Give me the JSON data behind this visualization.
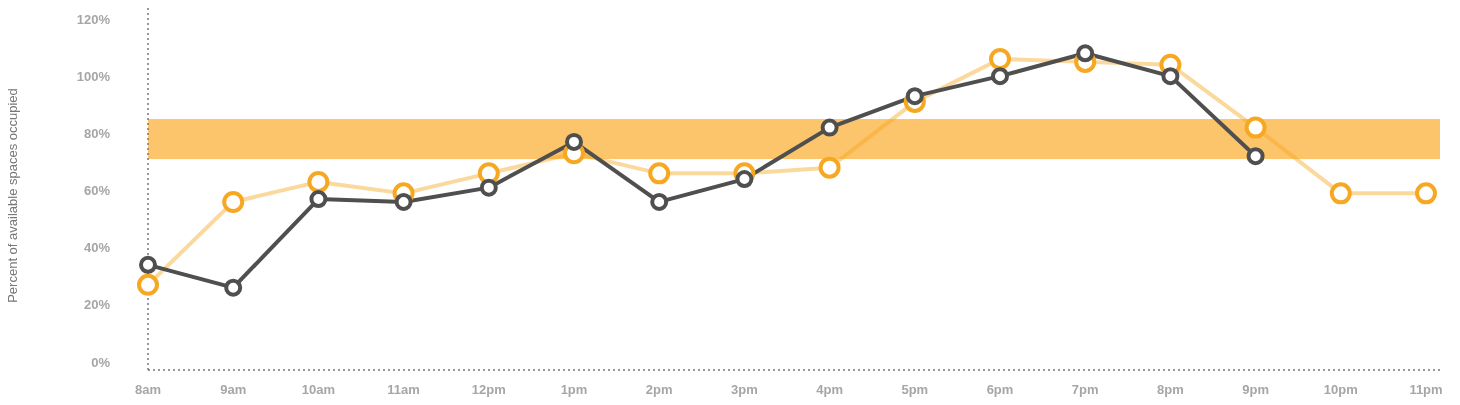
{
  "chart_data": {
    "type": "line",
    "ylabel": "Percent of available spaces occupied",
    "categories": [
      "8am",
      "9am",
      "10am",
      "11am",
      "12pm",
      "1pm",
      "2pm",
      "3pm",
      "4pm",
      "5pm",
      "6pm",
      "7pm",
      "8pm",
      "9pm",
      "10pm",
      "11pm"
    ],
    "series": [
      {
        "color": "#f7a823",
        "values": [
          27,
          56,
          63,
          59,
          66,
          73,
          66,
          66,
          68,
          91,
          106,
          105,
          104,
          82,
          59,
          59
        ]
      },
      {
        "color": "#4f4f4f",
        "values": [
          34,
          26,
          57,
          56,
          61,
          77,
          56,
          64,
          82,
          93,
          100,
          108,
          100,
          72,
          null,
          null
        ]
      }
    ],
    "ylim": [
      0,
      120
    ],
    "yticks": [
      {
        "value": 0,
        "label": "0%"
      },
      {
        "value": 20,
        "label": "20%"
      },
      {
        "value": 40,
        "label": "40%"
      },
      {
        "value": 60,
        "label": "60%"
      },
      {
        "value": 80,
        "label": "80%"
      },
      {
        "value": 100,
        "label": "100%"
      },
      {
        "value": 120,
        "label": "120%"
      }
    ],
    "bands": [
      {
        "axis": "y",
        "from": 71,
        "to": 85,
        "color": "#fcc163"
      }
    ],
    "grid": false,
    "marker": "circle",
    "line_style": "solid"
  }
}
